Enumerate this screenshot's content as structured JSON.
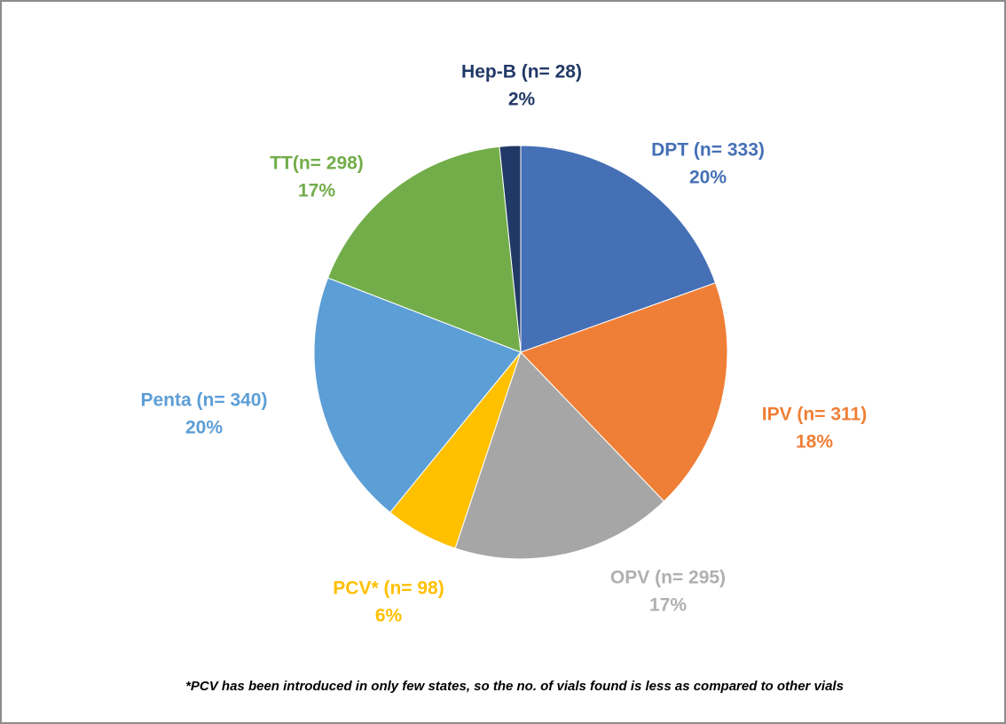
{
  "chart_data": {
    "type": "pie",
    "categories": [
      "DPT",
      "IPV",
      "OPV",
      "PCV*",
      "Penta",
      "TT",
      "Hep-B"
    ],
    "values": [
      333,
      311,
      295,
      98,
      340,
      298,
      28
    ],
    "value_labels": [
      "DPT (n= 333)",
      "IPV (n= 311)",
      "OPV (n= 295)",
      "PCV* (n= 98)",
      "Penta (n= 340)",
      "TT(n= 298)",
      "Hep-B (n= 28)"
    ],
    "percentages": [
      20,
      18,
      17,
      6,
      20,
      17,
      2
    ],
    "percentage_labels": [
      "20%",
      "18%",
      "17%",
      "6%",
      "20%",
      "17%",
      "2%"
    ],
    "colors": [
      "#4570b6",
      "#ef7f36",
      "#a6a6a6",
      "#ffc000",
      "#5c9ed6",
      "#72ad4a",
      "#213966"
    ],
    "label_colors": [
      "#4570b6",
      "#ef7f36",
      "#b0b0b0",
      "#ffc000",
      "#5c9ed6",
      "#72ad4a",
      "#213966"
    ],
    "footnote": "*PCV has been introduced in only few states, so the no. of vials found is less as compared to other vials"
  }
}
